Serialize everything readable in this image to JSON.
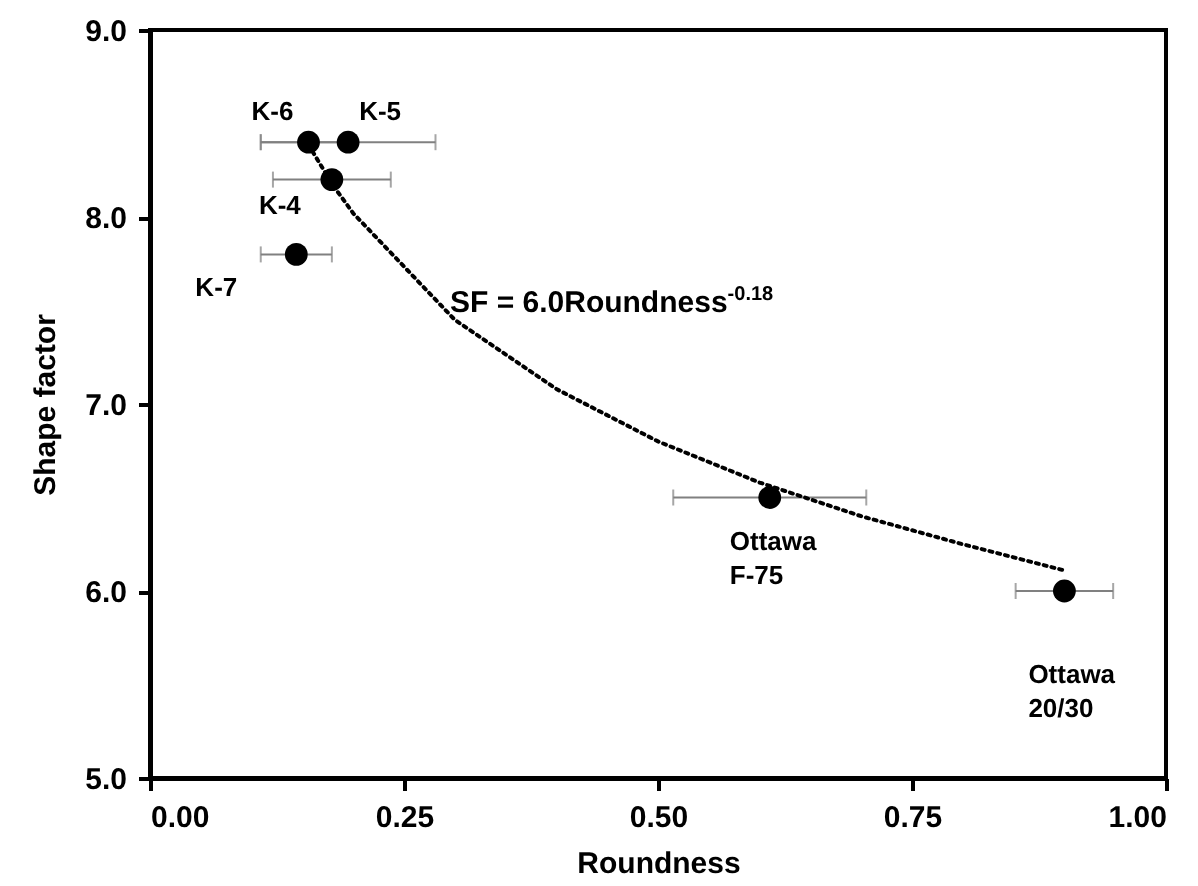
{
  "chart_data": {
    "type": "scatter",
    "xlabel": "Roundness",
    "ylabel": "Shape factor",
    "xlim": [
      0,
      1
    ],
    "ylim": [
      5,
      9
    ],
    "xticks": [
      {
        "value": 0,
        "label": "0.00"
      },
      {
        "value": 0.25,
        "label": "0.25"
      },
      {
        "value": 0.5,
        "label": "0.50"
      },
      {
        "value": 0.75,
        "label": "0.75"
      },
      {
        "value": 1,
        "label": "1.00"
      }
    ],
    "yticks": [
      {
        "value": 5,
        "label": "5.0"
      },
      {
        "value": 6,
        "label": "6.0"
      },
      {
        "value": 7,
        "label": "7.0"
      },
      {
        "value": 8,
        "label": "8.0"
      },
      {
        "value": 9,
        "label": "9.0"
      }
    ],
    "grid": false,
    "series": [
      {
        "color": "#000000",
        "marker": "circle",
        "x": [
          0.156,
          0.195,
          0.179,
          0.144,
          0.61,
          0.9
        ],
        "values": [
          8.4,
          8.4,
          8.2,
          7.8,
          6.5,
          6.0
        ],
        "xerrors": [
          0.047,
          0.086,
          0.058,
          0.035,
          0.095,
          0.048
        ]
      },
      {
        "type": "line",
        "color": "#000000",
        "line_style": "dotted",
        "x": [
          0.16,
          0.18,
          0.2,
          0.3,
          0.4,
          0.5,
          0.6,
          0.7,
          0.8,
          0.9
        ],
        "values": [
          8.35,
          8.17,
          8.02,
          7.45,
          7.08,
          6.8,
          6.58,
          6.4,
          6.25,
          6.11
        ]
      }
    ],
    "annotations": [
      {
        "text": "K-6",
        "x": 0.156,
        "y": 8.4
      },
      {
        "text": "K-5",
        "x": 0.195,
        "y": 8.4
      },
      {
        "text": "K-4",
        "x": 0.179,
        "y": 8.2
      },
      {
        "text": "K-7",
        "x": 0.144,
        "y": 7.8
      },
      {
        "text": "Ottawa F-75",
        "x": 0.61,
        "y": 6.5
      },
      {
        "text": "Ottawa 20/30",
        "x": 0.9,
        "y": 6.0
      },
      "SF = 6.0Roundness$^{-0.18}$"
    ]
  }
}
